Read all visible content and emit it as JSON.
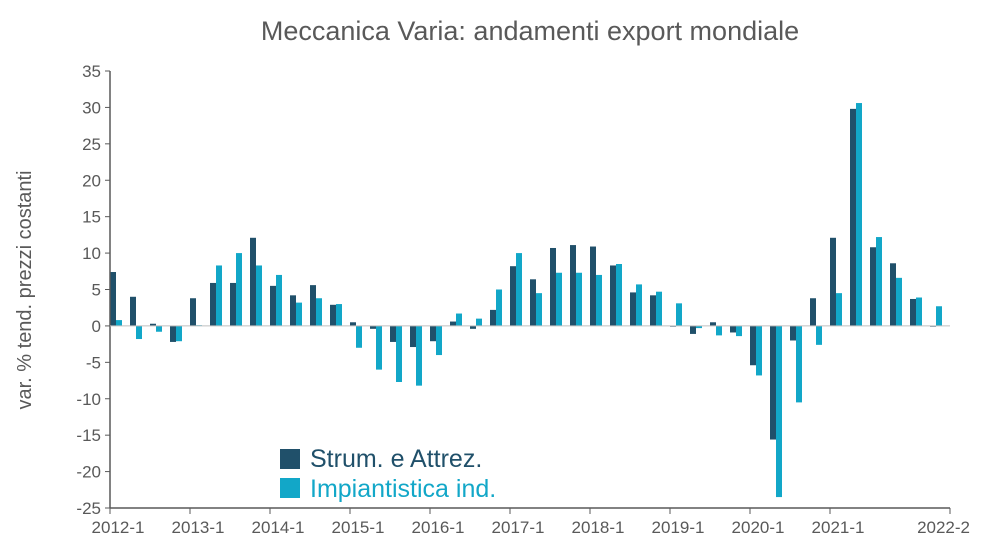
{
  "chart_data": {
    "type": "bar",
    "title": "Meccanica Varia: andamenti export mondiale",
    "xlabel": "",
    "ylabel": "var. % tend. prezzi costanti",
    "ylim": [
      -25,
      35
    ],
    "yticks": [
      35,
      30,
      25,
      20,
      15,
      10,
      5,
      0,
      -5,
      -10,
      -15,
      -20,
      -25
    ],
    "xtick_labels": [
      "2012-1",
      "2013-1",
      "2014-1",
      "2015-1",
      "2016-1",
      "2017-1",
      "2018-1",
      "2019-1",
      "2020-1",
      "2021-1",
      "2022-2"
    ],
    "categories": [
      "2012-1",
      "2012-2",
      "2012-3",
      "2012-4",
      "2013-1",
      "2013-2",
      "2013-3",
      "2013-4",
      "2014-1",
      "2014-2",
      "2014-3",
      "2014-4",
      "2015-1",
      "2015-2",
      "2015-3",
      "2015-4",
      "2016-1",
      "2016-2",
      "2016-3",
      "2016-4",
      "2017-1",
      "2017-2",
      "2017-3",
      "2017-4",
      "2018-1",
      "2018-2",
      "2018-3",
      "2018-4",
      "2019-1",
      "2019-2",
      "2019-3",
      "2019-4",
      "2020-1",
      "2020-2",
      "2020-3",
      "2020-4",
      "2021-1",
      "2021-2",
      "2021-3",
      "2021-4",
      "2022-1",
      "2022-2"
    ],
    "series": [
      {
        "name": "Strum. e Attrez.",
        "color": "#20506a",
        "values": [
          7.4,
          4.0,
          0.3,
          -2.2,
          3.8,
          5.9,
          5.9,
          12.1,
          5.5,
          4.2,
          5.6,
          2.9,
          0.5,
          -0.4,
          -2.2,
          -2.9,
          -2.1,
          0.6,
          -0.4,
          2.2,
          8.2,
          6.4,
          10.7,
          11.1,
          10.9,
          8.3,
          4.6,
          4.2,
          -0.1,
          -1.1,
          0.5,
          -0.9,
          -5.4,
          -15.6,
          -2.0,
          3.8,
          12.1,
          29.8,
          10.8,
          8.6,
          3.7,
          -0.1
        ]
      },
      {
        "name": "Impiantistica ind.",
        "color": "#12a7c8",
        "values": [
          0.8,
          -1.8,
          -0.8,
          -2.1,
          0.1,
          8.3,
          10.0,
          8.3,
          7.0,
          3.2,
          3.8,
          3.0,
          -3.0,
          -6.0,
          -7.7,
          -8.2,
          -4.0,
          1.7,
          1.0,
          5.0,
          10.0,
          4.5,
          7.3,
          7.3,
          7.0,
          8.5,
          5.7,
          4.7,
          3.1,
          -0.3,
          -1.3,
          -1.4,
          -6.8,
          -23.5,
          -10.5,
          -2.6,
          4.5,
          30.6,
          12.2,
          6.6,
          3.9,
          2.7
        ]
      }
    ],
    "grid": false,
    "legend_position": "bottom-left"
  }
}
